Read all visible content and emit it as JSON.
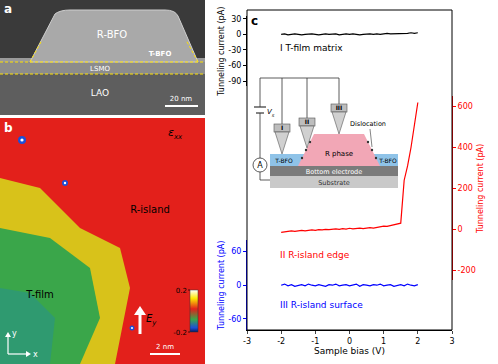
{
  "panel_a": {
    "label": "a",
    "layers": {
      "island": "R-BFO",
      "edge": "T-BFO",
      "electrode": "LSMO",
      "substrate": "LAO"
    },
    "scale_bar": "20 nm"
  },
  "panel_b": {
    "label": "b",
    "quantity": "ε",
    "quantity_subscript": "xx",
    "regions": {
      "island": "R-island",
      "film": "T-film"
    },
    "field": "E",
    "field_subscript": "y",
    "scale_bar": "2 nm",
    "axes": {
      "x": "x",
      "y": "y"
    },
    "colorbar": {
      "range": [
        -0.2,
        0.2
      ],
      "ticks": [
        0.2,
        -0.2
      ]
    }
  },
  "chart_data": {
    "type": "line",
    "label": "c",
    "xlabel": "Sample bias (V)",
    "xlim": [
      -3,
      3
    ],
    "xticks": [
      -3,
      -2,
      -1,
      0,
      1,
      2,
      3
    ],
    "x": [
      -2,
      -1.9,
      -1.8,
      -1.7,
      -1.6,
      -1.5,
      -1.4,
      -1.3,
      -1.2,
      -1.1,
      -1,
      -0.9,
      -0.8,
      -0.7,
      -0.6,
      -0.5,
      -0.4,
      -0.3,
      -0.2,
      -0.1,
      0,
      0.1,
      0.2,
      0.3,
      0.4,
      0.5,
      0.6,
      0.7,
      0.8,
      0.9,
      1,
      1.1,
      1.2,
      1.3,
      1.4,
      1.5,
      1.6,
      1.7,
      1.8,
      1.9,
      2
    ],
    "ylabel": "Tunneling current (pA)",
    "ylim": [
      -100,
      35
    ],
    "yticks": [
      30,
      0,
      -30,
      -60,
      -90
    ],
    "y2label": "Tunneling current (pA)",
    "y2lim": [
      -250,
      650
    ],
    "y2ticks": [
      600,
      400,
      200,
      0,
      -200
    ],
    "y3label": "Tunneling current (pA)",
    "y3lim": [
      -80,
      80
    ],
    "y3ticks": [
      60,
      0,
      -60
    ],
    "series": [
      {
        "name": "I T-film matrix",
        "color": "#000000",
        "axis": "y",
        "values": [
          0,
          1,
          -1,
          0,
          1,
          0,
          -1,
          0,
          1,
          1,
          0,
          -1,
          0,
          1,
          0,
          0,
          1,
          -1,
          0,
          1,
          0,
          1,
          0,
          -1,
          0,
          1,
          1,
          0,
          1,
          0,
          1,
          2,
          1,
          1,
          2,
          1,
          2,
          2,
          3,
          2,
          3
        ]
      },
      {
        "name": "II R-island edge",
        "color": "#ff0000",
        "axis": "y2",
        "values": [
          -15,
          -12,
          -10,
          -8,
          -10,
          -6,
          -5,
          -8,
          -4,
          -3,
          -5,
          -2,
          -3,
          0,
          -2,
          0,
          2,
          0,
          3,
          1,
          5,
          2,
          4,
          6,
          3,
          5,
          8,
          6,
          10,
          12,
          15,
          14,
          18,
          20,
          25,
          30,
          240,
          310,
          400,
          500,
          620
        ]
      },
      {
        "name": "III R-island surface",
        "color": "#0000ff",
        "axis": "y3",
        "values": [
          0,
          2,
          -1,
          1,
          -2,
          0,
          1,
          -1,
          2,
          0,
          -1,
          1,
          0,
          -2,
          1,
          0,
          2,
          -1,
          0,
          1,
          -1,
          0,
          2,
          -2,
          1,
          0,
          -1,
          1,
          0,
          2,
          -1,
          0,
          1,
          -2,
          0,
          1,
          -1,
          2,
          0,
          -1,
          1
        ]
      }
    ],
    "inset": {
      "tips": [
        "I",
        "II",
        "III"
      ],
      "dislocation": "Dislocation",
      "r_phase": "R phase",
      "film": "T-BFO",
      "electrode": "Bottom electrode",
      "substrate": "Substrate",
      "ammeter": "A",
      "source": "V",
      "source_subscript": "s"
    }
  }
}
